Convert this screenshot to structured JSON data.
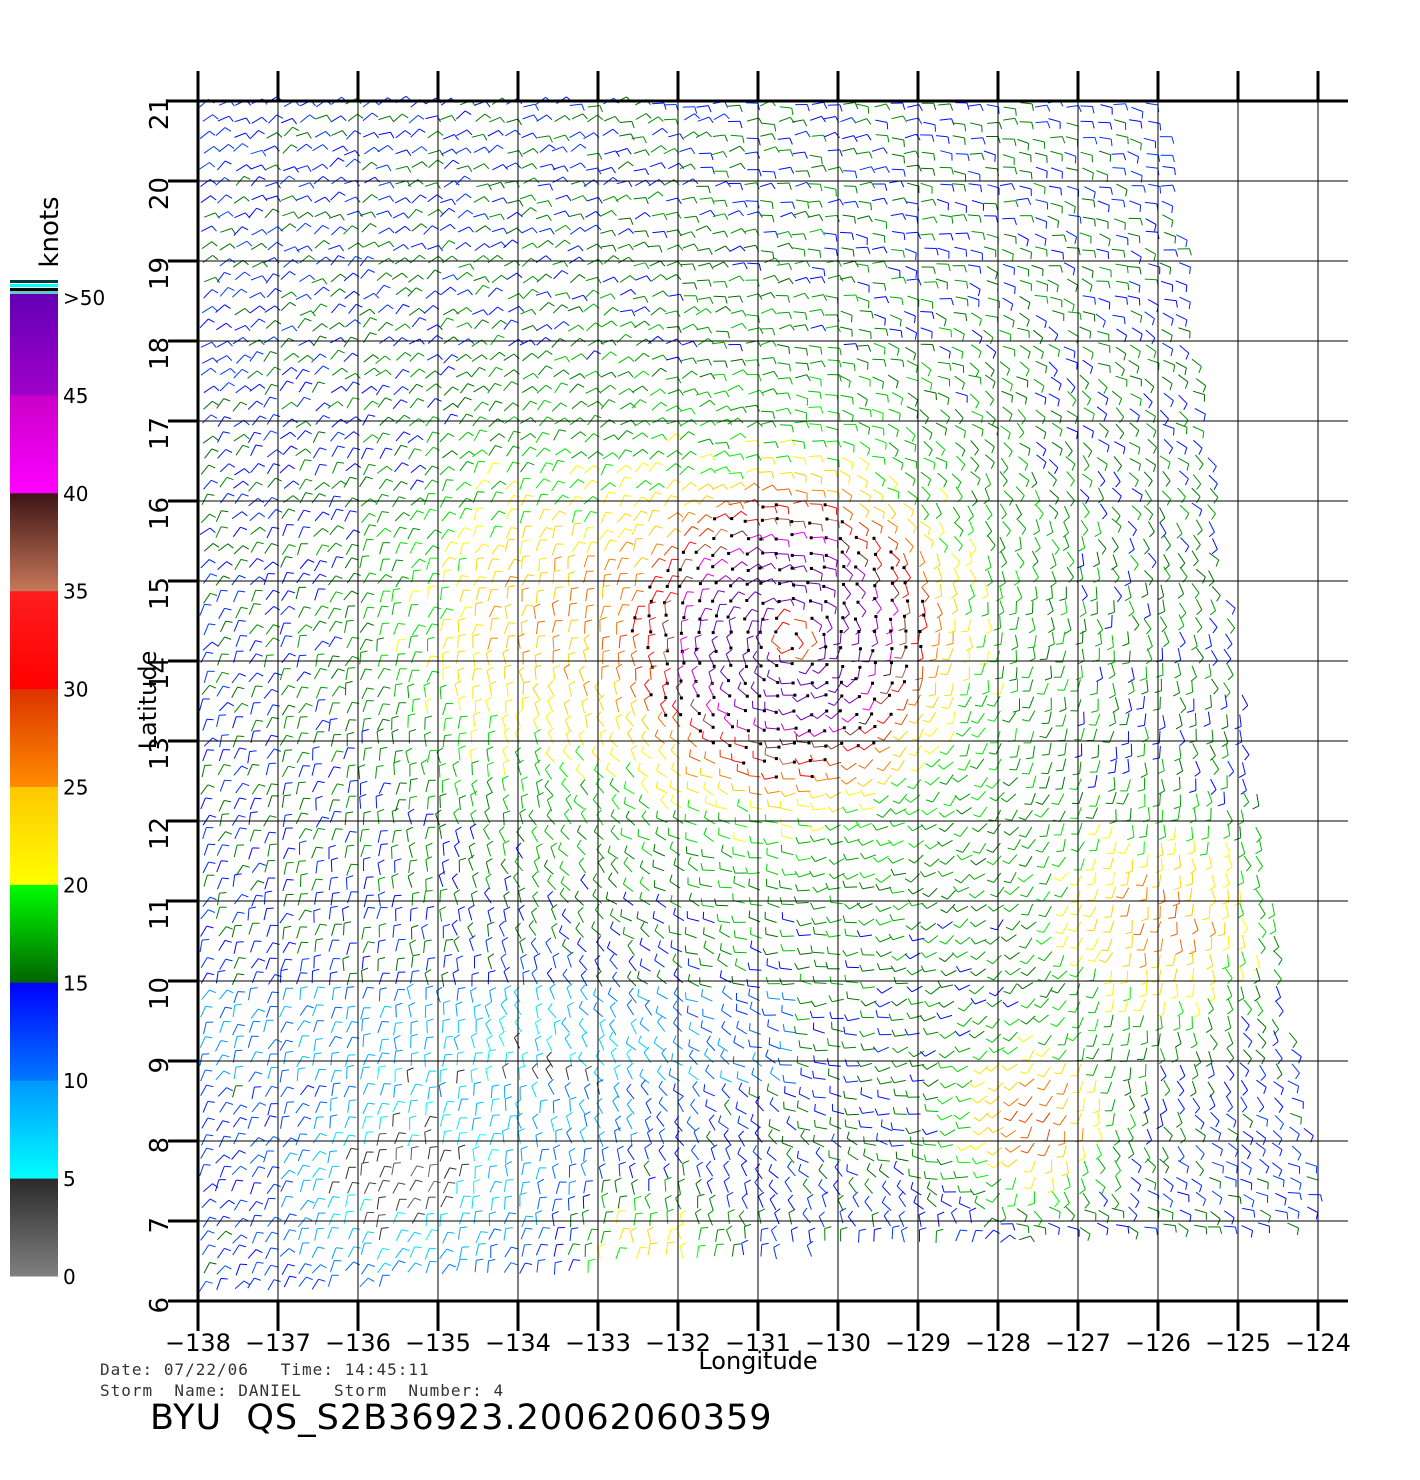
{
  "chart_data": {
    "type": "wind-barb-map",
    "xlabel": "Longitude",
    "ylabel": "Latitude",
    "xlim": [
      -138,
      -124
    ],
    "ylim": [
      6,
      21
    ],
    "x_ticks": [
      "−138",
      "−137",
      "−136",
      "−135",
      "−134",
      "−133",
      "−132",
      "−131",
      "−130",
      "−129",
      "−128",
      "−127",
      "−126",
      "−125",
      "−124"
    ],
    "y_ticks": [
      "6",
      "7",
      "8",
      "9",
      "10",
      "11",
      "12",
      "13",
      "14",
      "15",
      "16",
      "17",
      "18",
      "19",
      "20",
      "21"
    ],
    "grid": true,
    "swath_corners_lonlat": [
      [
        -138,
        6
      ],
      [
        -138,
        21
      ],
      [
        -126,
        21
      ],
      [
        -124,
        7
      ]
    ],
    "storm_center_lonlat": [
      -130.6,
      14.3
    ],
    "colorbar": {
      "unit": "knots",
      "placement": "left",
      "labels": [
        "0",
        "5",
        "10",
        "15",
        "20",
        "25",
        "30",
        "35",
        "40",
        "45",
        ">50"
      ],
      "bands": [
        {
          "from": 0,
          "to": 5,
          "colors": [
            "#808080",
            "#2a2a2a"
          ]
        },
        {
          "from": 5,
          "to": 10,
          "colors": [
            "#00ffff",
            "#0096ff"
          ]
        },
        {
          "from": 10,
          "to": 15,
          "colors": [
            "#0078ff",
            "#0000ff"
          ]
        },
        {
          "from": 15,
          "to": 20,
          "colors": [
            "#006400",
            "#00ff00"
          ]
        },
        {
          "from": 20,
          "to": 25,
          "colors": [
            "#ffff00",
            "#ffc800"
          ]
        },
        {
          "from": 25,
          "to": 30,
          "colors": [
            "#ff8c00",
            "#dc3200"
          ]
        },
        {
          "from": 30,
          "to": 35,
          "colors": [
            "#ff0000",
            "#ff1e1e"
          ]
        },
        {
          "from": 35,
          "to": 40,
          "colors": [
            "#c8785a",
            "#3c1414"
          ]
        },
        {
          "from": 40,
          "to": 45,
          "colors": [
            "#ff00ff",
            "#c800c8"
          ]
        },
        {
          "from": 45,
          "to": 50,
          "colors": [
            "#a000c8",
            "#6400b4"
          ]
        }
      ]
    },
    "rain_flag_color": "#000000"
  },
  "footer": {
    "date_label": "Date:",
    "date_value": "07/22/06",
    "time_label": "Time:",
    "time_value": "14:45:11",
    "storm_name_label": "Storm  Name:",
    "storm_name_value": "DANIEL",
    "storm_number_label": "Storm  Number:",
    "storm_number_value": "4",
    "title": "BYU  QS_S2B36923.20062060359"
  }
}
